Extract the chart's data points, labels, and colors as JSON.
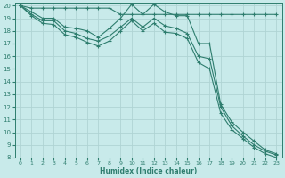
{
  "xlabel": "Humidex (Indice chaleur)",
  "bg_color": "#c8eaea",
  "grid_color": "#afd4d4",
  "line_color": "#2e7d6e",
  "x": [
    0,
    1,
    2,
    3,
    4,
    5,
    6,
    7,
    8,
    9,
    10,
    11,
    12,
    13,
    14,
    15,
    16,
    17,
    18,
    19,
    20,
    21,
    22,
    23
  ],
  "line1": [
    20.0,
    19.8,
    19.8,
    19.8,
    19.8,
    19.8,
    19.8,
    19.8,
    19.8,
    19.3,
    19.3,
    19.3,
    19.3,
    19.3,
    19.3,
    19.3,
    19.3,
    19.3,
    19.3,
    19.3,
    19.3,
    19.3,
    19.3,
    19.3
  ],
  "line2": [
    20.0,
    19.5,
    19.0,
    19.0,
    18.3,
    18.2,
    18.0,
    17.5,
    18.2,
    19.0,
    20.1,
    19.3,
    20.1,
    19.5,
    19.2,
    19.2,
    17.0,
    17.0,
    12.2,
    10.8,
    10.0,
    9.3,
    8.6,
    8.3
  ],
  "line3": [
    20.0,
    19.3,
    18.8,
    18.8,
    18.0,
    17.8,
    17.4,
    17.2,
    17.6,
    18.3,
    19.0,
    18.3,
    19.0,
    18.4,
    18.2,
    17.8,
    16.0,
    15.8,
    12.0,
    10.5,
    9.7,
    9.0,
    8.5,
    8.2
  ],
  "line4": [
    20.0,
    19.2,
    18.6,
    18.5,
    17.7,
    17.5,
    17.1,
    16.8,
    17.2,
    18.0,
    18.8,
    18.0,
    18.6,
    17.9,
    17.8,
    17.4,
    15.5,
    15.0,
    11.5,
    10.2,
    9.5,
    8.8,
    8.3,
    8.0
  ],
  "xlim": [
    -0.5,
    23.5
  ],
  "ylim": [
    8,
    20.2
  ],
  "yticks": [
    8,
    9,
    10,
    11,
    12,
    13,
    14,
    15,
    16,
    17,
    18,
    19,
    20
  ],
  "xticks": [
    0,
    1,
    2,
    3,
    4,
    5,
    6,
    7,
    8,
    9,
    10,
    11,
    12,
    13,
    14,
    15,
    16,
    17,
    18,
    19,
    20,
    21,
    22,
    23
  ]
}
